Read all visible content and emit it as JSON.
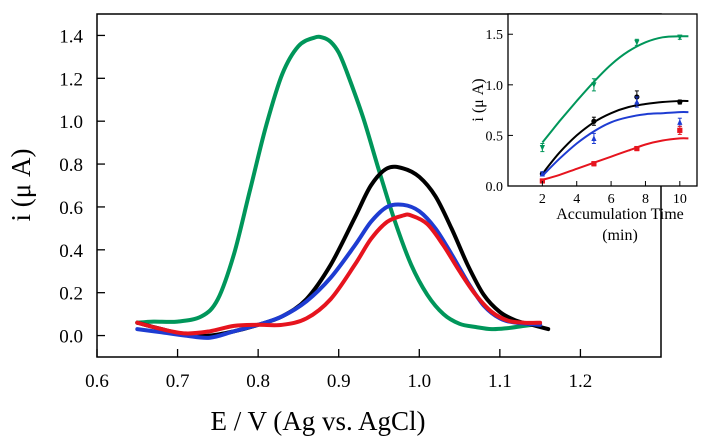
{
  "chart_data": [
    {
      "id": "main",
      "type": "line",
      "title": "",
      "xlabel": "E / V  (Ag vs. AgCl)",
      "ylabel": "i  (μ A)",
      "xlim": [
        0.6,
        1.3
      ],
      "ylim": [
        -0.1,
        1.5
      ],
      "xticks": [
        0.6,
        0.7,
        0.8,
        0.9,
        1.0,
        1.1,
        1.2
      ],
      "xtick_labels": [
        "0.6",
        "0.7",
        "0.8",
        "0.9",
        "1.0",
        "1.1",
        "1.2"
      ],
      "yticks": [
        0.0,
        0.2,
        0.4,
        0.6,
        0.8,
        1.0,
        1.2,
        1.4
      ],
      "ytick_labels": [
        "0.0",
        "0.2",
        "0.4",
        "0.6",
        "0.8",
        "1.0",
        "1.2",
        "1.4"
      ],
      "grid": false,
      "series": [
        {
          "color": "#00965a",
          "x": [
            0.65,
            0.67,
            0.7,
            0.73,
            0.75,
            0.77,
            0.79,
            0.81,
            0.83,
            0.85,
            0.87,
            0.88,
            0.89,
            0.9,
            0.91,
            0.93,
            0.95,
            0.97,
            0.99,
            1.01,
            1.03,
            1.05,
            1.07,
            1.09,
            1.11,
            1.13,
            1.15
          ],
          "y": [
            0.06,
            0.065,
            0.065,
            0.09,
            0.17,
            0.38,
            0.68,
            0.98,
            1.22,
            1.35,
            1.39,
            1.39,
            1.37,
            1.32,
            1.23,
            1.02,
            0.77,
            0.53,
            0.33,
            0.19,
            0.1,
            0.055,
            0.04,
            0.03,
            0.035,
            0.045,
            0.055
          ]
        },
        {
          "color": "#000000",
          "x": [
            0.65,
            0.68,
            0.71,
            0.74,
            0.77,
            0.8,
            0.83,
            0.86,
            0.89,
            0.92,
            0.94,
            0.96,
            0.98,
            1.0,
            1.02,
            1.04,
            1.06,
            1.08,
            1.1,
            1.12,
            1.14,
            1.16
          ],
          "y": [
            0.06,
            0.03,
            0.005,
            0.0,
            0.02,
            0.05,
            0.09,
            0.17,
            0.33,
            0.55,
            0.7,
            0.78,
            0.78,
            0.74,
            0.65,
            0.5,
            0.33,
            0.19,
            0.11,
            0.07,
            0.05,
            0.03
          ]
        },
        {
          "color": "#1e3cd2",
          "x": [
            0.65,
            0.68,
            0.71,
            0.74,
            0.77,
            0.8,
            0.83,
            0.86,
            0.89,
            0.92,
            0.94,
            0.96,
            0.98,
            1.0,
            1.02,
            1.04,
            1.06,
            1.08,
            1.1,
            1.12,
            1.15
          ],
          "y": [
            0.03,
            0.015,
            0.0,
            -0.01,
            0.02,
            0.05,
            0.09,
            0.16,
            0.27,
            0.42,
            0.53,
            0.6,
            0.61,
            0.58,
            0.5,
            0.38,
            0.25,
            0.14,
            0.08,
            0.06,
            0.05
          ]
        },
        {
          "color": "#e6141e",
          "x": [
            0.65,
            0.68,
            0.71,
            0.74,
            0.77,
            0.8,
            0.83,
            0.86,
            0.89,
            0.92,
            0.94,
            0.96,
            0.98,
            0.99,
            1.01,
            1.03,
            1.05,
            1.07,
            1.09,
            1.11,
            1.13,
            1.15
          ],
          "y": [
            0.06,
            0.03,
            0.01,
            0.02,
            0.045,
            0.05,
            0.05,
            0.08,
            0.17,
            0.33,
            0.45,
            0.53,
            0.56,
            0.56,
            0.52,
            0.42,
            0.3,
            0.19,
            0.11,
            0.07,
            0.06,
            0.06
          ]
        }
      ]
    },
    {
      "id": "inset",
      "type": "scatter",
      "title": "",
      "xlabel": "Accumulation Time",
      "xlabel2": "(min)",
      "ylabel": "i  (μ A)",
      "xlim": [
        0,
        11
      ],
      "ylim": [
        0,
        1.7
      ],
      "xticks": [
        2,
        4,
        6,
        8,
        10
      ],
      "xtick_labels": [
        "2",
        "4",
        "6",
        "8",
        "10"
      ],
      "yticks": [
        0.0,
        0.5,
        1.0,
        1.5
      ],
      "ytick_labels": [
        "0.0",
        "0.5",
        "1.0",
        "1.5"
      ],
      "grid": false,
      "series": [
        {
          "color": "#00965a",
          "marker": "triangle-down",
          "x": [
            2,
            5,
            7.5,
            10
          ],
          "y": [
            0.38,
            1.0,
            1.42,
            1.47
          ],
          "err": [
            0.04,
            0.06,
            0.03,
            0.02
          ],
          "fit_x": [
            2,
            3,
            4,
            5,
            6,
            7,
            8,
            9,
            10,
            10.5
          ],
          "fit_y": [
            0.43,
            0.64,
            0.84,
            1.03,
            1.2,
            1.33,
            1.42,
            1.47,
            1.48,
            1.48
          ]
        },
        {
          "color": "#000000",
          "marker": "circle",
          "x": [
            2,
            5,
            7.5,
            10
          ],
          "y": [
            0.12,
            0.64,
            0.88,
            0.83
          ],
          "err": [
            0.02,
            0.04,
            0.06,
            0.02
          ],
          "fit_x": [
            2,
            3,
            4,
            5,
            6,
            7,
            8,
            9,
            10,
            10.5
          ],
          "fit_y": [
            0.12,
            0.33,
            0.5,
            0.63,
            0.72,
            0.78,
            0.81,
            0.83,
            0.84,
            0.84
          ]
        },
        {
          "color": "#1e3cd2",
          "marker": "triangle-up",
          "x": [
            2,
            5,
            7.5,
            10
          ],
          "y": [
            0.12,
            0.47,
            0.83,
            0.63
          ],
          "err": [
            0.02,
            0.05,
            0.05,
            0.04
          ],
          "fit_x": [
            2,
            3,
            4,
            5,
            6,
            7,
            8,
            9,
            10,
            10.5
          ],
          "fit_y": [
            0.1,
            0.27,
            0.42,
            0.54,
            0.63,
            0.68,
            0.71,
            0.72,
            0.73,
            0.73
          ]
        },
        {
          "color": "#e6141e",
          "marker": "square",
          "x": [
            2,
            5,
            7.5,
            10
          ],
          "y": [
            0.05,
            0.22,
            0.37,
            0.55
          ],
          "err": [
            0.01,
            0.02,
            0.02,
            0.04
          ],
          "fit_x": [
            2,
            3,
            4,
            5,
            6,
            7,
            8,
            9,
            10,
            10.5
          ],
          "fit_y": [
            0.06,
            0.11,
            0.17,
            0.23,
            0.29,
            0.35,
            0.41,
            0.45,
            0.47,
            0.47
          ]
        }
      ]
    }
  ]
}
